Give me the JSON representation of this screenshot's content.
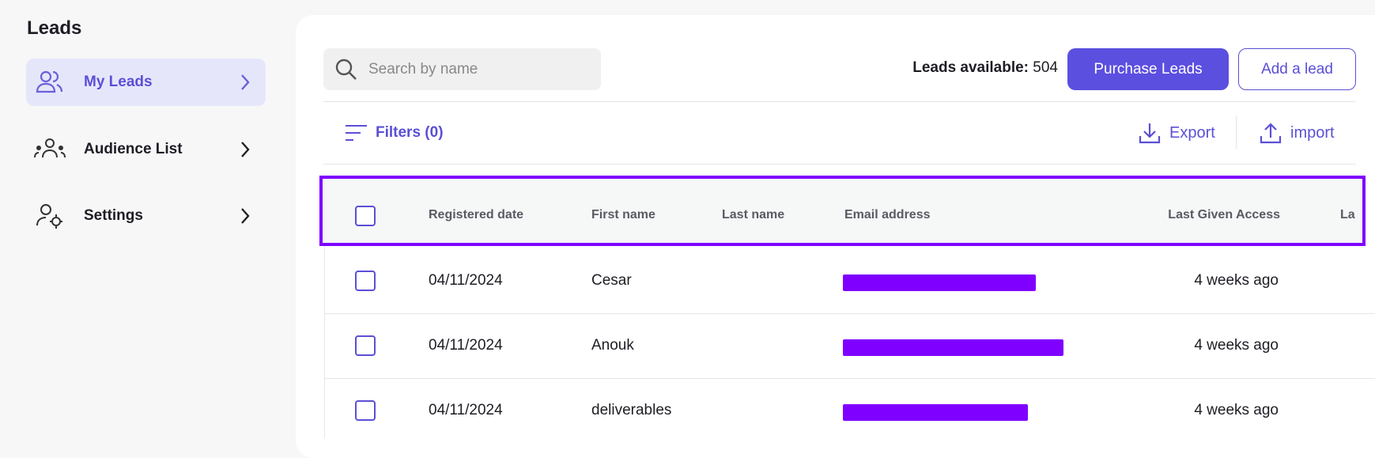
{
  "sidebar": {
    "title": "Leads",
    "items": [
      "My Leads",
      "Audience List",
      "Settings"
    ]
  },
  "toolbar": {
    "search_placeholder": "Search by name",
    "leads_available_label": "Leads available:",
    "leads_available_value": "504",
    "purchase_button": "Purchase Leads",
    "add_button": "Add a lead",
    "filters": "Filters (0)",
    "export": "Export",
    "import": "import"
  },
  "table": {
    "columns": [
      "Registered date",
      "First name",
      "Last name",
      "Email address",
      "Last Given Access",
      "La"
    ],
    "rows": [
      [
        "04/11/2024",
        "Cesar",
        "",
        "",
        "4 weeks ago"
      ],
      [
        "04/11/2024",
        "Anouk",
        "",
        "",
        "4 weeks ago"
      ],
      [
        "04/11/2024",
        "deliverables",
        "",
        "",
        "4 weeks ago"
      ]
    ]
  }
}
